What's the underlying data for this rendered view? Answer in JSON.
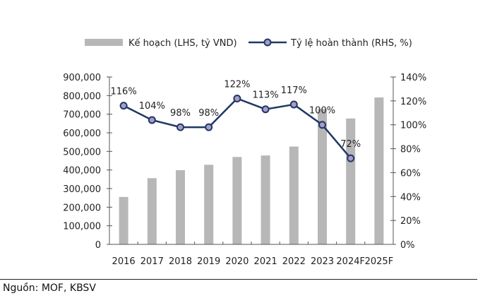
{
  "chart_data": {
    "type": "bar+line",
    "categories": [
      "2016",
      "2017",
      "2018",
      "2019",
      "2020",
      "2021",
      "2022",
      "2023",
      "2024F",
      "2025F"
    ],
    "series": [
      {
        "name": "Kế hoạch (LHS, tỷ VND)",
        "type": "bar",
        "axis": "left",
        "color": "#b7b7b7",
        "values": [
          255000,
          356000,
          399000,
          428000,
          470000,
          478000,
          526000,
          728000,
          677000,
          790000
        ]
      },
      {
        "name": "Tỷ lệ hoàn thành (RHS, %)",
        "type": "line",
        "axis": "right",
        "color": "#1f3864",
        "marker_color": "#a99bc9",
        "values": [
          116,
          104,
          98,
          98,
          122,
          113,
          117,
          100,
          72,
          null
        ],
        "labels": [
          "116%",
          "104%",
          "98%",
          "98%",
          "122%",
          "113%",
          "117%",
          "100%",
          "72%",
          ""
        ]
      }
    ],
    "ylim_left": [
      0,
      900000
    ],
    "ylim_right": [
      0,
      140
    ],
    "yticks_left": [
      "0",
      "100,000",
      "200,000",
      "300,000",
      "400,000",
      "500,000",
      "600,000",
      "700,000",
      "800,000",
      "900,000"
    ],
    "yticks_right": [
      "0%",
      "20%",
      "40%",
      "60%",
      "80%",
      "100%",
      "120%",
      "140%"
    ],
    "legend": "top",
    "grid": false
  },
  "source": "Nguồn: MOF, KBSV"
}
